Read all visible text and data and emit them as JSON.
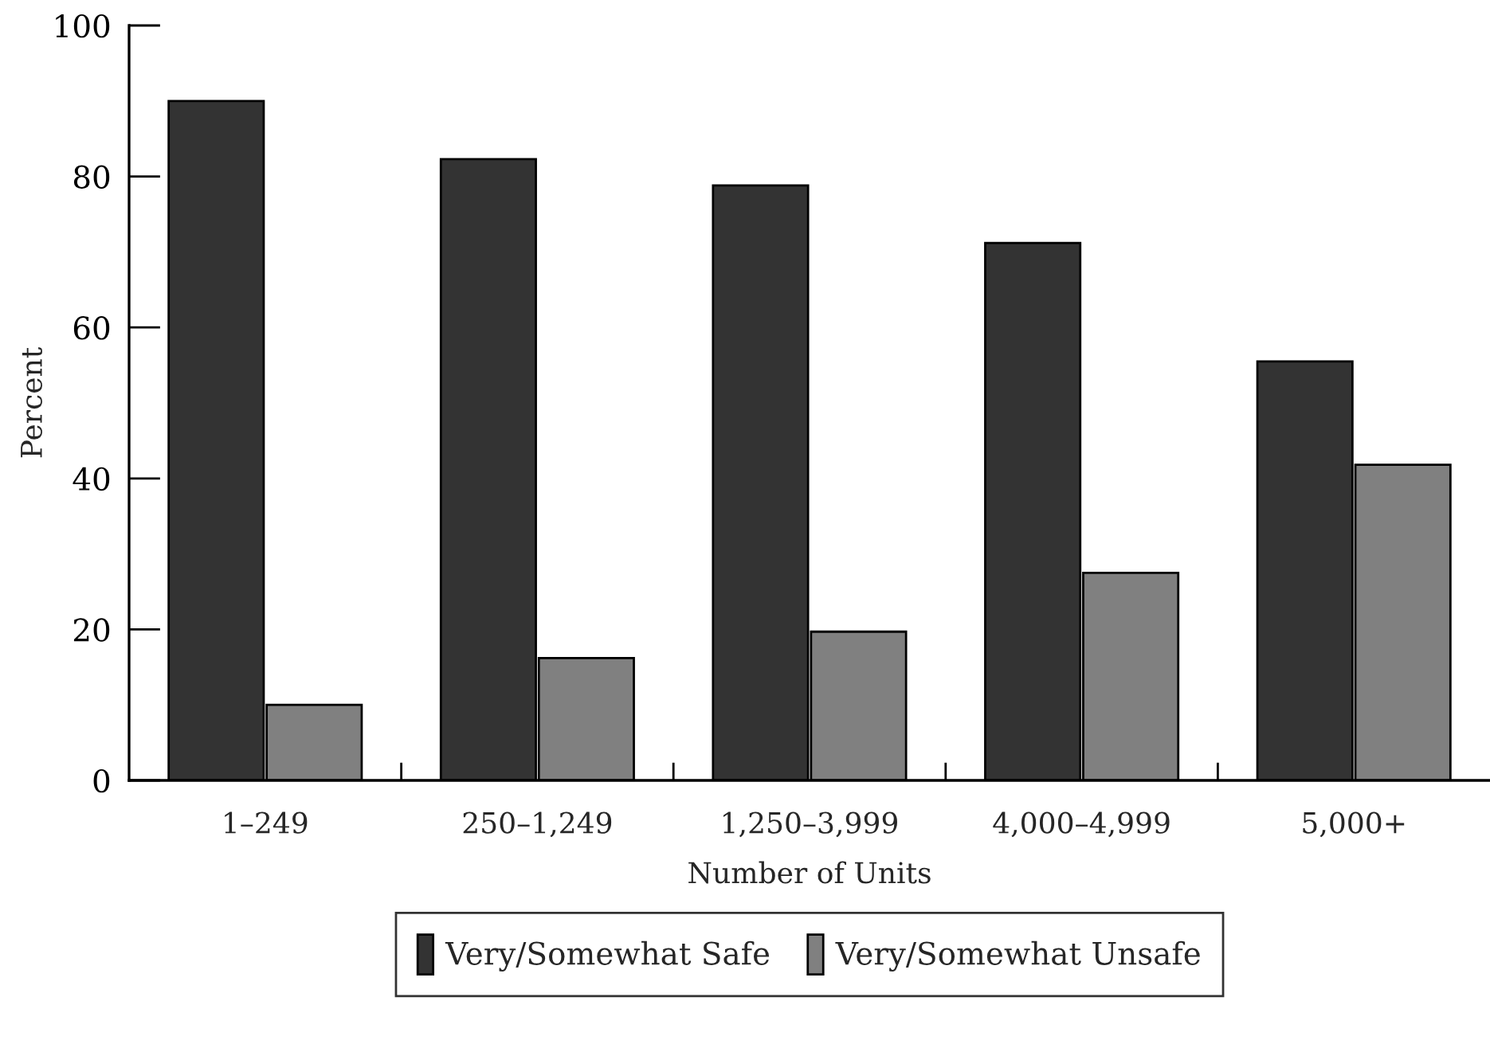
{
  "chart_data": {
    "type": "bar",
    "xlabel": "Number of Units",
    "ylabel": "Percent",
    "categories": [
      "1–249",
      "250–1,249",
      "1,250–3,999",
      "4,000–4,999",
      "5,000+"
    ],
    "series": [
      {
        "name": "Very/Somewhat Safe",
        "color": "#333333",
        "values": [
          90,
          82.3,
          78.8,
          71.2,
          55.5
        ]
      },
      {
        "name": "Very/Somewhat Unsafe",
        "color": "#808080",
        "values": [
          10,
          16.2,
          19.7,
          27.5,
          41.8
        ]
      }
    ],
    "ylim": [
      0,
      100
    ],
    "yticks": [
      0,
      20,
      40,
      60,
      80,
      100
    ],
    "grid": false,
    "legend": "bottom"
  }
}
